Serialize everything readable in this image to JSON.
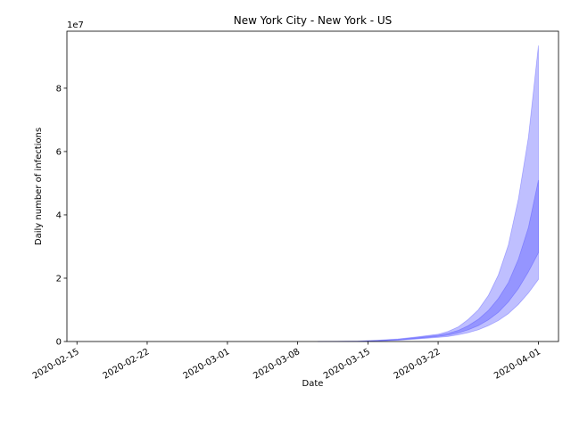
{
  "chart_data": {
    "type": "area",
    "title": "New York City - New York - US",
    "xlabel": "Date",
    "ylabel": "Daily number of infections",
    "y_offset_text": "1e7",
    "y_multiplier": 10000000,
    "x_ticks": [
      "2020-02-15",
      "2020-02-22",
      "2020-03-01",
      "2020-03-08",
      "2020-03-15",
      "2020-03-22",
      "2020-04-01"
    ],
    "y_ticks": [
      0,
      2,
      4,
      6,
      8
    ],
    "xlim": [
      "2020-02-14",
      "2020-04-03"
    ],
    "ylim": [
      0,
      9.8
    ],
    "x": [
      "2020-03-10",
      "2020-03-12",
      "2020-03-14",
      "2020-03-16",
      "2020-03-18",
      "2020-03-20",
      "2020-03-22",
      "2020-03-23",
      "2020-03-24",
      "2020-03-25",
      "2020-03-26",
      "2020-03-27",
      "2020-03-28",
      "2020-03-29",
      "2020-03-30",
      "2020-03-31",
      "2020-04-01"
    ],
    "bands": [
      {
        "color": "#0000ff",
        "opacity": 0.25,
        "lower": [
          0,
          0.001,
          0.005,
          0.015,
          0.04,
          0.08,
          0.13,
          0.16,
          0.21,
          0.28,
          0.37,
          0.5,
          0.66,
          0.88,
          1.17,
          1.53,
          1.96
        ],
        "upper": [
          0.002,
          0.005,
          0.012,
          0.04,
          0.08,
          0.15,
          0.23,
          0.32,
          0.46,
          0.7,
          1.0,
          1.45,
          2.1,
          3.05,
          4.5,
          6.45,
          9.35
        ]
      },
      {
        "color": "#0000ff",
        "opacity": 0.22,
        "lower": [
          0.001,
          0.003,
          0.008,
          0.022,
          0.05,
          0.1,
          0.16,
          0.2,
          0.27,
          0.37,
          0.5,
          0.68,
          0.92,
          1.25,
          1.67,
          2.2,
          2.8
        ],
        "upper": [
          0.001,
          0.004,
          0.01,
          0.03,
          0.065,
          0.125,
          0.2,
          0.26,
          0.35,
          0.5,
          0.7,
          0.98,
          1.36,
          1.86,
          2.6,
          3.6,
          5.1
        ]
      }
    ]
  }
}
